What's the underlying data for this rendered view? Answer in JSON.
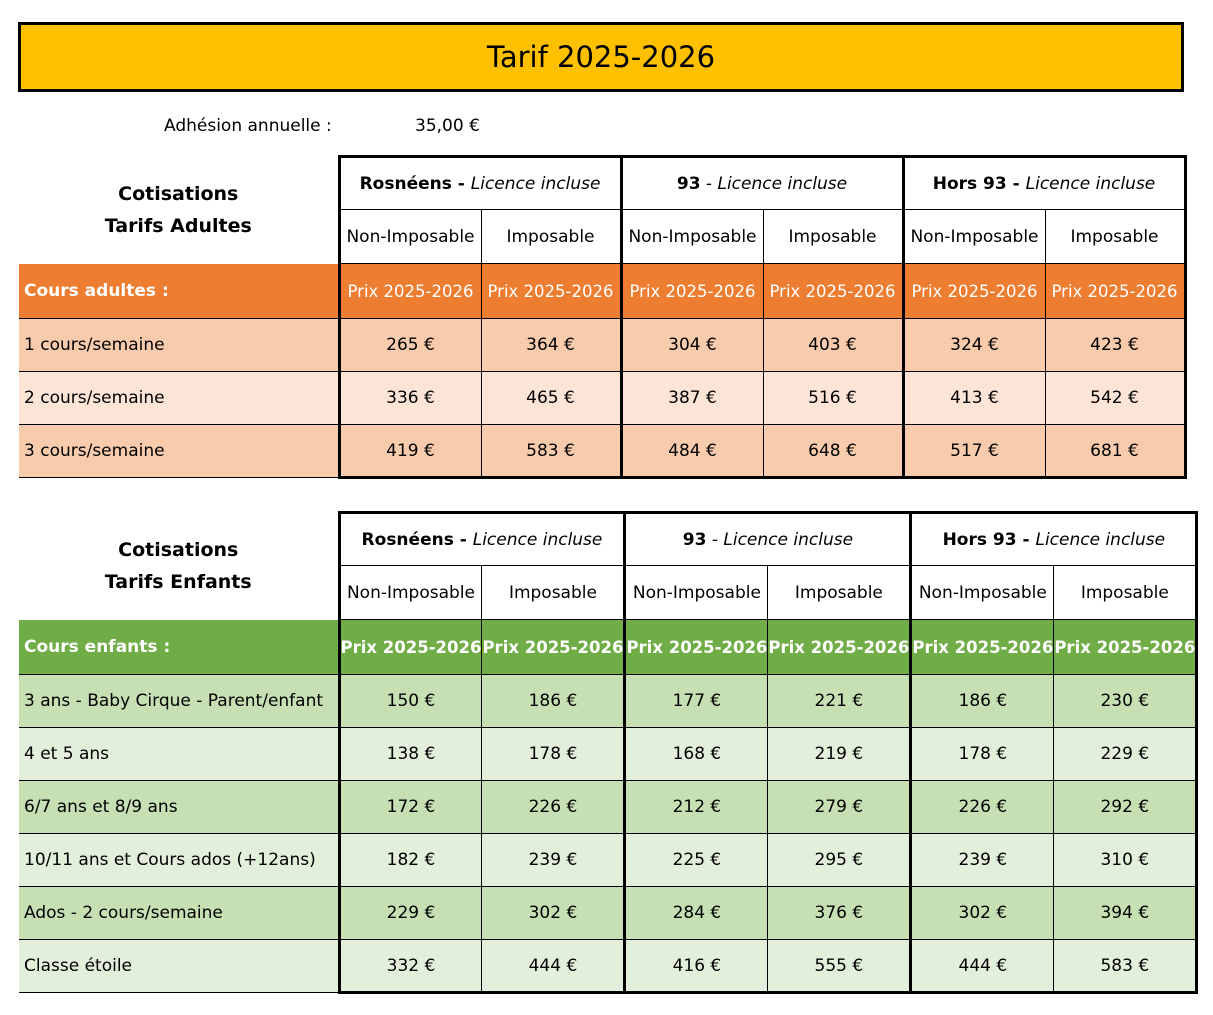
{
  "title": "Tarif 2025-2026",
  "adhesion": {
    "label": "Adhésion annuelle :",
    "value": "35,00 €"
  },
  "groups": [
    {
      "name": "Rosnéens",
      "sep": " - ",
      "note": "Licence incluse"
    },
    {
      "name": "93",
      "sep": " - ",
      "note": "Licence incluse"
    },
    {
      "name": "Hors 93",
      "sep": " - ",
      "note": "Licence incluse"
    }
  ],
  "subheaders": {
    "non_imposable": "Non-Imposable",
    "imposable": "Imposable"
  },
  "price_label": "Prix 2025-2026",
  "adults": {
    "heading_line1": "Cotisations",
    "heading_line2": "Tarifs Adultes",
    "band_label": "Cours adultes :",
    "rows": [
      {
        "label": "1 cours/semaine",
        "values": [
          "265 €",
          "364 €",
          "304 €",
          "403 €",
          "324 €",
          "423 €"
        ]
      },
      {
        "label": "2 cours/semaine",
        "values": [
          "336 €",
          "465 €",
          "387 €",
          "516 €",
          "413 €",
          "542 €"
        ]
      },
      {
        "label": "3 cours/semaine",
        "values": [
          "419 €",
          "583 €",
          "484 €",
          "648 €",
          "517 €",
          "681 €"
        ]
      }
    ]
  },
  "children": {
    "heading_line1": "Cotisations",
    "heading_line2": "Tarifs Enfants",
    "band_label": "Cours enfants :",
    "rows": [
      {
        "label": "3 ans - Baby Cirque - Parent/enfant",
        "values": [
          "150 €",
          "186 €",
          "177 €",
          "221 €",
          "186 €",
          "230 €"
        ]
      },
      {
        "label": "4 et 5 ans",
        "values": [
          "138 €",
          "178 €",
          "168 €",
          "219 €",
          "178 €",
          "229 €"
        ]
      },
      {
        "label": "6/7 ans et 8/9 ans",
        "values": [
          "172 €",
          "226 €",
          "212 €",
          "279 €",
          "226 €",
          "292 €"
        ]
      },
      {
        "label": "10/11 ans et Cours ados (+12ans)",
        "values": [
          "182 €",
          "239 €",
          "225 €",
          "295 €",
          "239 €",
          "310 €"
        ]
      },
      {
        "label": "Ados - 2 cours/semaine",
        "values": [
          "229 €",
          "302 €",
          "284 €",
          "376 €",
          "302 €",
          "394 €"
        ]
      },
      {
        "label": "Classe étoile",
        "values": [
          "332 €",
          "444 €",
          "416 €",
          "555 €",
          "444 €",
          "583 €"
        ]
      }
    ]
  },
  "colors": {
    "title_bg": "#FFC000",
    "adult_band": "#ED7D31",
    "adult_row_dark": "#F8CBAD",
    "adult_row_light": "#FCE4D6",
    "child_band": "#70AD47",
    "child_row_dark": "#C6E0B4",
    "child_row_light": "#E2EFDA"
  }
}
